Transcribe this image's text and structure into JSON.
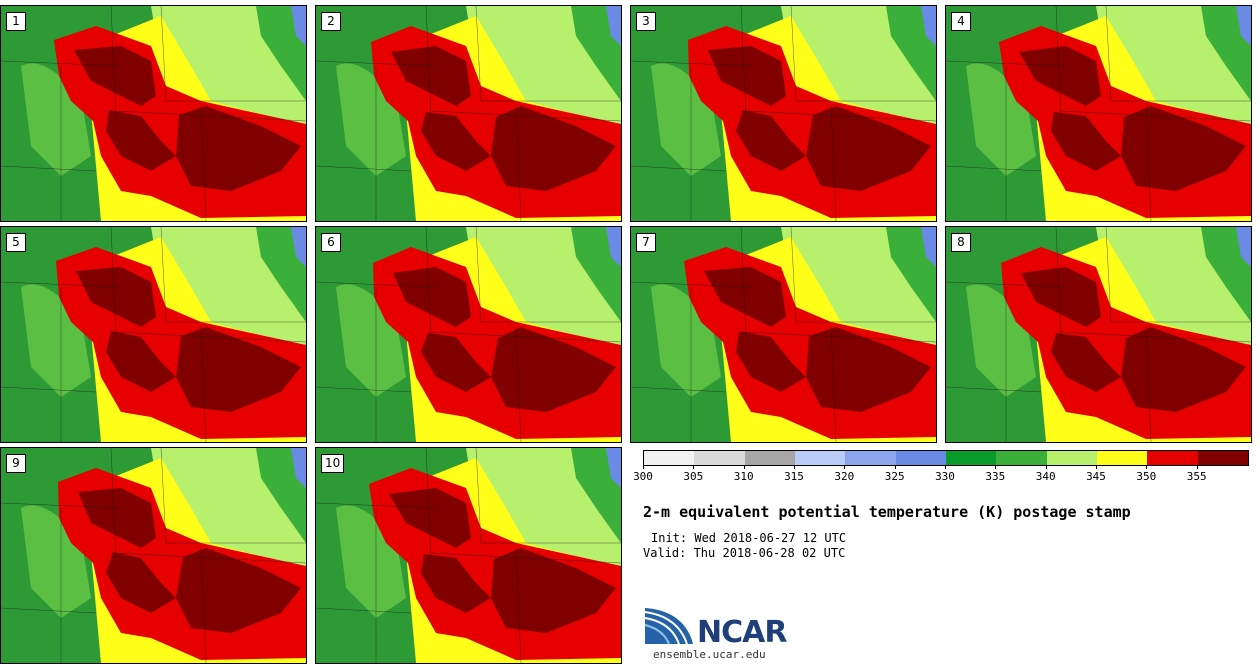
{
  "panels": [
    {
      "label": "1"
    },
    {
      "label": "2"
    },
    {
      "label": "3"
    },
    {
      "label": "4"
    },
    {
      "label": "5"
    },
    {
      "label": "6"
    },
    {
      "label": "7"
    },
    {
      "label": "8"
    },
    {
      "label": "9"
    },
    {
      "label": "10"
    }
  ],
  "colorbar": {
    "colors": [
      "#f2f2f2",
      "#d9d9d9",
      "#a6a6a6",
      "#b9ccf7",
      "#8ca6ee",
      "#6b8ae6",
      "#0a9c2a",
      "#3aaf3a",
      "#b7f06c",
      "#ffff1a",
      "#e60000",
      "#800000"
    ],
    "ticks": [
      "300",
      "305",
      "310",
      "315",
      "320",
      "325",
      "330",
      "335",
      "340",
      "345",
      "350",
      "355"
    ]
  },
  "title": "2-m equivalent potential temperature (K) postage stamp",
  "init": "Init: Wed 2018-06-27 12 UTC",
  "valid": "Valid: Thu 2018-06-28 02 UTC",
  "logo": {
    "text": "NCAR",
    "url": "ensemble.ucar.edu",
    "color": "#1f3f7a"
  }
}
